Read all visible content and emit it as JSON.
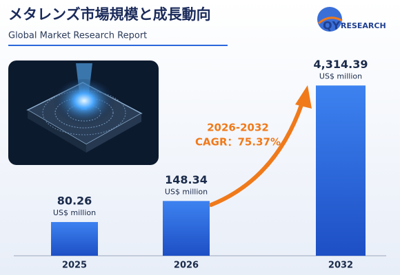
{
  "chart_data": {
    "type": "bar",
    "title": "メタレンズ市場規模と成長動向",
    "subtitle": "Global Market Research Report",
    "logo_prefix": "QY",
    "logo_suffix": "RESEARCH",
    "categories": [
      "2025",
      "2026",
      "2032"
    ],
    "values": [
      80.26,
      148.34,
      4314.39
    ],
    "value_labels": [
      "80.26",
      "148.34",
      "4,314.39"
    ],
    "unit": "US$ million",
    "annotation": {
      "period": "2026-2032",
      "cagr": "CAGR：75.37%"
    },
    "color": "#2a66dc",
    "annotation_color": "#f07a1a",
    "log_scale": true,
    "ylim": [
      30,
      5000
    ]
  }
}
